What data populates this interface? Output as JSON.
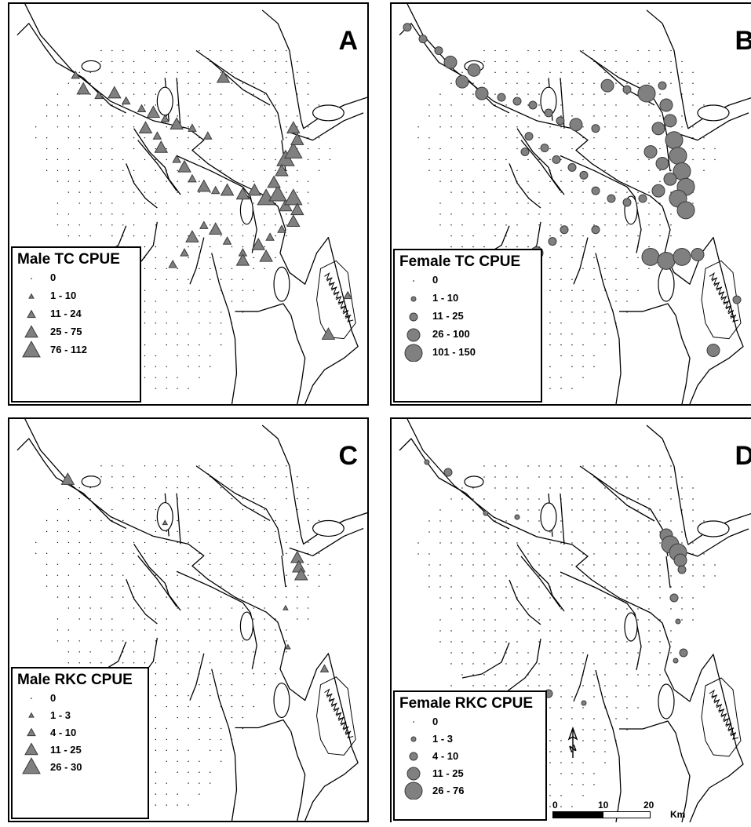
{
  "panels": [
    {
      "id": "A",
      "letter": "A",
      "legend": {
        "title": "Male TC CPUE",
        "symbol": "triangle",
        "classes": [
          {
            "label": "0",
            "size": 1
          },
          {
            "label": "1 - 10",
            "size": 2
          },
          {
            "label": "11 - 24",
            "size": 3
          },
          {
            "label": "25 - 75",
            "size": 4
          },
          {
            "label": "76 - 112",
            "size": 5
          }
        ]
      }
    },
    {
      "id": "B",
      "letter": "B",
      "legend": {
        "title": "Female TC CPUE",
        "symbol": "circle",
        "classes": [
          {
            "label": "0",
            "size": 1
          },
          {
            "label": "1 - 10",
            "size": 2
          },
          {
            "label": "11 - 25",
            "size": 3
          },
          {
            "label": "26 - 100",
            "size": 4
          },
          {
            "label": "101 - 150",
            "size": 5
          }
        ]
      }
    },
    {
      "id": "C",
      "letter": "C",
      "legend": {
        "title": "Male RKC CPUE",
        "symbol": "triangle",
        "classes": [
          {
            "label": "0",
            "size": 1
          },
          {
            "label": "1 - 3",
            "size": 2
          },
          {
            "label": "4 - 10",
            "size": 3
          },
          {
            "label": "11 - 25",
            "size": 4
          },
          {
            "label": "26 - 30",
            "size": 5
          }
        ]
      }
    },
    {
      "id": "D",
      "letter": "D",
      "legend": {
        "title": "Female RKC CPUE",
        "symbol": "circle",
        "classes": [
          {
            "label": "0",
            "size": 1
          },
          {
            "label": "1 - 3",
            "size": 2
          },
          {
            "label": "4 - 10",
            "size": 3
          },
          {
            "label": "11 - 25",
            "size": 4
          },
          {
            "label": "26 - 76",
            "size": 5
          }
        ]
      }
    }
  ],
  "scale_bar": {
    "ticks": [
      "0",
      "10",
      "20"
    ],
    "unit": "Km"
  },
  "north_arrow": {
    "label": "N",
    "icon": "north-arrow-icon"
  },
  "colors": {
    "symbol_fill": "#808080",
    "symbol_stroke": "#3a3a3a",
    "outline": "#000000"
  }
}
